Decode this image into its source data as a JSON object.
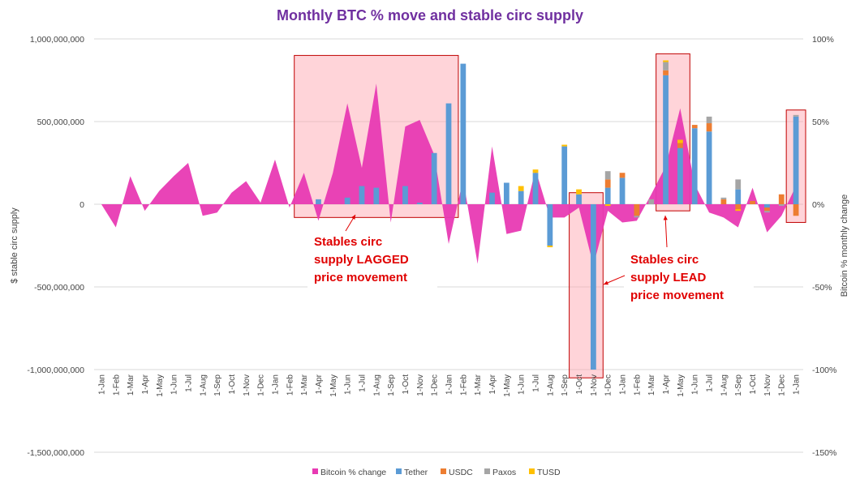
{
  "chart_data": {
    "type": "bar",
    "title": "Monthly BTC % move and stable circ supply",
    "ylabel_left": "$ stable circ supply",
    "ylabel_right": "Bitcoin % monthly change",
    "left_axis": {
      "range": [
        -1500000000,
        1000000000
      ],
      "ticks": [
        1000000000,
        500000000,
        0,
        -500000000,
        -1000000000,
        -1500000000
      ],
      "tick_labels": [
        "1,000,000,000",
        "500,000,000",
        "0",
        "-500,000,000",
        "-1,000,000,000",
        "-1,500,000,000"
      ]
    },
    "right_axis": {
      "range": [
        -150,
        100
      ],
      "ticks": [
        100,
        50,
        0,
        -50,
        -100,
        -150
      ],
      "tick_labels": [
        "100%",
        "50%",
        "0%",
        "-50%",
        "-100%",
        "-150%"
      ]
    },
    "categories": [
      "1-Jan",
      "1-Feb",
      "1-Mar",
      "1-Apr",
      "1-May",
      "1-Jun",
      "1-Jul",
      "1-Aug",
      "1-Sep",
      "1-Oct",
      "1-Nov",
      "1-Dec",
      "1-Jan",
      "1-Feb",
      "1-Mar",
      "1-Apr",
      "1-May",
      "1-Jun",
      "1-Jul",
      "1-Aug",
      "1-Sep",
      "1-Oct",
      "1-Nov",
      "1-Dec",
      "1-Jan",
      "1-Feb",
      "1-Mar",
      "1-Apr",
      "1-May",
      "1-Jun",
      "1-Jul",
      "1-Aug",
      "1-Sep",
      "1-Oct",
      "1-Nov",
      "1-Dec",
      "1-Jan",
      "1-Feb",
      "1-Mar",
      "1-Apr",
      "1-May",
      "1-Jun",
      "1-Jul",
      "1-Aug",
      "1-Sep",
      "1-Oct",
      "1-Nov",
      "1-Dec",
      "1-Jan"
    ],
    "series": [
      {
        "name": "Bitcoin % change",
        "color": "#e83ab3",
        "axis": "right",
        "kind": "area",
        "values": [
          0,
          -14,
          17,
          -4,
          8,
          17,
          25,
          -7,
          -5,
          7,
          14,
          1,
          27,
          -2,
          19,
          -10,
          19,
          61,
          22,
          73,
          -11,
          47,
          51,
          30,
          -24,
          15,
          -36,
          35,
          -18,
          -16,
          21,
          -8,
          -8,
          -2,
          -37,
          -4,
          -11,
          -10,
          6,
          23,
          58,
          12,
          -5,
          -8,
          -14,
          10,
          -17,
          -7,
          11
        ]
      },
      {
        "name": "Tether",
        "color": "#5b9bd5",
        "axis": "left",
        "kind": "stacked-bar",
        "values": [
          0,
          0,
          0,
          0,
          0,
          0,
          0,
          0,
          0,
          0,
          0,
          0,
          0,
          0,
          0,
          30000000,
          0,
          40000000,
          110000000,
          100000000,
          0,
          110000000,
          10000000,
          310000000,
          610000000,
          850000000,
          0,
          70000000,
          130000000,
          80000000,
          190000000,
          -250000000,
          350000000,
          60000000,
          -1000000000,
          100000000,
          160000000,
          0,
          0,
          780000000,
          340000000,
          460000000,
          440000000,
          0,
          90000000,
          0,
          -20000000,
          0,
          530000000
        ]
      },
      {
        "name": "USDC",
        "color": "#ed7d31",
        "axis": "left",
        "kind": "stacked-bar",
        "values": [
          0,
          0,
          0,
          0,
          0,
          0,
          0,
          0,
          0,
          0,
          0,
          0,
          0,
          0,
          0,
          0,
          0,
          0,
          0,
          0,
          0,
          0,
          0,
          0,
          0,
          0,
          0,
          0,
          0,
          0,
          0,
          0,
          0,
          0,
          0,
          50000000,
          30000000,
          -70000000,
          0,
          30000000,
          30000000,
          20000000,
          50000000,
          30000000,
          -30000000,
          20000000,
          -20000000,
          60000000,
          -70000000
        ]
      },
      {
        "name": "Paxos",
        "color": "#a5a5a5",
        "axis": "left",
        "kind": "stacked-bar",
        "values": [
          0,
          0,
          0,
          0,
          0,
          0,
          0,
          0,
          0,
          0,
          0,
          0,
          0,
          0,
          0,
          0,
          0,
          0,
          0,
          0,
          0,
          0,
          0,
          0,
          0,
          0,
          0,
          0,
          0,
          0,
          0,
          0,
          0,
          0,
          0,
          50000000,
          0,
          -10000000,
          30000000,
          50000000,
          0,
          0,
          40000000,
          10000000,
          60000000,
          0,
          -10000000,
          -10000000,
          10000000
        ]
      },
      {
        "name": "TUSD",
        "color": "#ffc000",
        "axis": "left",
        "kind": "stacked-bar",
        "values": [
          0,
          0,
          0,
          0,
          0,
          0,
          0,
          0,
          0,
          0,
          0,
          0,
          0,
          0,
          0,
          0,
          0,
          0,
          0,
          0,
          0,
          0,
          0,
          0,
          0,
          0,
          0,
          0,
          0,
          30000000,
          20000000,
          -10000000,
          10000000,
          30000000,
          0,
          -10000000,
          0,
          0,
          0,
          10000000,
          20000000,
          0,
          0,
          0,
          -10000000,
          0,
          0,
          0,
          0
        ]
      }
    ],
    "legend_position": "bottom",
    "gridlines": true,
    "highlights": [
      {
        "from": "1-Mar",
        "to": "1-Jan",
        "range": [
          -80000000,
          900000000
        ]
      },
      {
        "from": "1-Oct",
        "to": "1-Nov",
        "range": [
          -1050000000,
          70000000
        ]
      },
      {
        "from": "1-Apr",
        "to": "1-May",
        "range": [
          -40000000,
          910000000
        ]
      },
      {
        "from": "1-Jan",
        "to": "1-Jan",
        "range": [
          -110000000,
          570000000
        ]
      }
    ],
    "annotations": [
      {
        "lines": [
          "Stables circ",
          "supply LAGGED",
          "price movement"
        ]
      },
      {
        "lines": [
          "Stables circ",
          "supply LEAD",
          "price movement"
        ]
      }
    ]
  }
}
